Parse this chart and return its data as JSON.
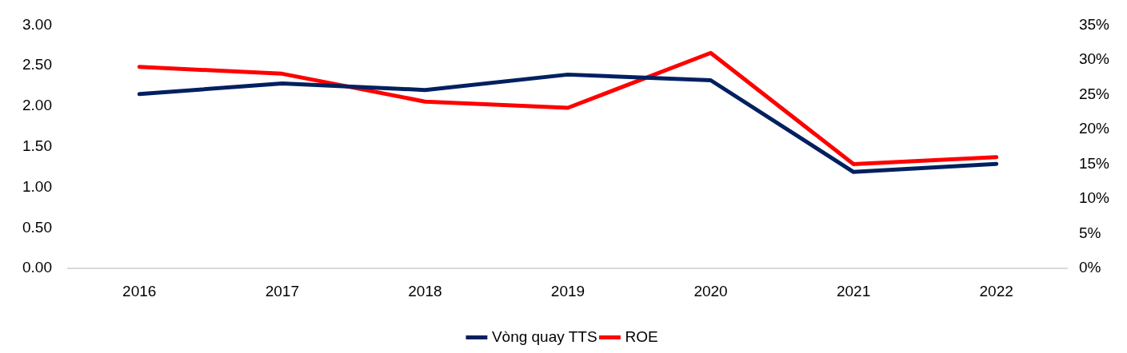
{
  "chart_data": {
    "type": "line",
    "categories": [
      "2016",
      "2017",
      "2018",
      "2019",
      "2020",
      "2021",
      "2022"
    ],
    "series": [
      {
        "name": "Vòng quay TTS",
        "color": "#002060",
        "values": [
          2.15,
          2.28,
          2.2,
          2.39,
          2.32,
          1.19,
          1.29
        ]
      },
      {
        "name": "ROE",
        "color": "#ff0000",
        "axis": "y2",
        "values": [
          29,
          28,
          24,
          23.1,
          31,
          15,
          16
        ]
      }
    ],
    "ylim": [
      0,
      3
    ],
    "yticks": [
      {
        "value": 0,
        "label": "0.00"
      },
      {
        "value": 0.5,
        "label": "0.50"
      },
      {
        "value": 1,
        "label": "1.00"
      },
      {
        "value": 1.5,
        "label": "1.50"
      },
      {
        "value": 2,
        "label": "2.00"
      },
      {
        "value": 2.5,
        "label": "2.50"
      },
      {
        "value": 3,
        "label": "3.00"
      }
    ],
    "y2lim": [
      0,
      35
    ],
    "y2ticks": [
      {
        "value": 0,
        "label": "0%"
      },
      {
        "value": 5,
        "label": "5%"
      },
      {
        "value": 10,
        "label": "10%"
      },
      {
        "value": 15,
        "label": "15%"
      },
      {
        "value": 20,
        "label": "20%"
      },
      {
        "value": 25,
        "label": "25%"
      },
      {
        "value": 30,
        "label": "30%"
      },
      {
        "value": 35,
        "label": "35%"
      }
    ],
    "legend": "bottom",
    "marker": "none",
    "line_style": "solid"
  }
}
